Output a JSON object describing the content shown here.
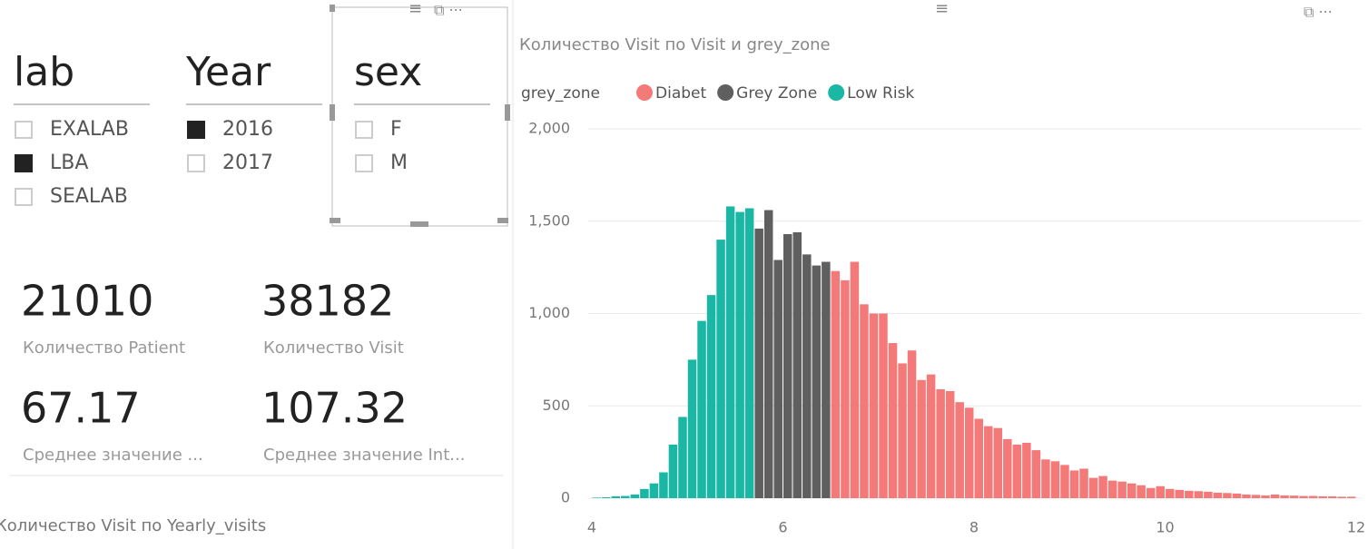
{
  "slicers": [
    {
      "title": "lab",
      "items": [
        {
          "label": "EXALAB",
          "selected": false
        },
        {
          "label": "LBA",
          "selected": true
        },
        {
          "label": "SEALAB",
          "selected": false
        }
      ]
    },
    {
      "title": "Year",
      "items": [
        {
          "label": "2016",
          "selected": true
        },
        {
          "label": "2017",
          "selected": false
        }
      ]
    },
    {
      "title": "sex",
      "items": [
        {
          "label": "F",
          "selected": false
        },
        {
          "label": "M",
          "selected": false
        }
      ]
    }
  ],
  "cards": [
    {
      "value": "21010",
      "label": "Количество Patient"
    },
    {
      "value": "38182",
      "label": "Количество Visit"
    },
    {
      "value": "67.17",
      "label": "Среднее значение ..."
    },
    {
      "value": "107.32",
      "label": "Среднее значение Int..."
    }
  ],
  "bottom_visual_title": "Количество Visit по Yearly_visits",
  "chart_data": {
    "type": "bar",
    "title": "Количество Visit по Visit и grey_zone",
    "legend_title": "grey_zone",
    "series": [
      {
        "name": "Diabet",
        "color": "#f47a7a",
        "x": [
          6.5,
          6.6,
          6.7,
          6.8,
          6.9,
          7.0,
          7.1,
          7.2,
          7.3,
          7.4,
          7.5,
          7.6,
          7.7,
          7.8,
          7.9,
          8.0,
          8.1,
          8.2,
          8.3,
          8.4,
          8.5,
          8.6,
          8.7,
          8.8,
          8.9,
          9.0,
          9.1,
          9.2,
          9.3,
          9.4,
          9.5,
          9.6,
          9.7,
          9.8,
          9.9,
          10.0,
          10.1,
          10.2,
          10.3,
          10.4,
          10.5,
          10.6,
          10.7,
          10.8,
          10.9,
          11.0,
          11.1,
          11.2,
          11.3,
          11.4,
          11.5,
          11.6,
          11.7,
          11.8,
          11.9
        ],
        "values": [
          1230,
          1180,
          1280,
          1050,
          1000,
          1000,
          840,
          730,
          800,
          640,
          670,
          590,
          580,
          520,
          490,
          430,
          390,
          380,
          320,
          290,
          300,
          260,
          210,
          200,
          180,
          150,
          160,
          110,
          120,
          95,
          90,
          80,
          70,
          55,
          65,
          50,
          45,
          40,
          38,
          35,
          30,
          28,
          25,
          20,
          18,
          15,
          20,
          15,
          14,
          12,
          12,
          10,
          10,
          8,
          8
        ]
      },
      {
        "name": "Grey Zone",
        "color": "#5f5f5f",
        "x": [
          5.7,
          5.8,
          5.9,
          6.0,
          6.1,
          6.2,
          6.3,
          6.4
        ],
        "values": [
          1460,
          1560,
          1290,
          1430,
          1440,
          1320,
          1260,
          1280
        ]
      },
      {
        "name": "Low Risk",
        "color": "#1bb7a5",
        "x": [
          4.0,
          4.1,
          4.2,
          4.3,
          4.4,
          4.5,
          4.6,
          4.7,
          4.8,
          4.9,
          5.0,
          5.1,
          5.2,
          5.3,
          5.4,
          5.5,
          5.6
        ],
        "values": [
          3,
          5,
          10,
          12,
          20,
          50,
          80,
          140,
          290,
          440,
          750,
          960,
          1100,
          1400,
          1580,
          1550,
          1570
        ]
      }
    ],
    "xlim": [
      4,
      12
    ],
    "xticks": [
      4,
      6,
      8,
      10,
      12
    ],
    "ylim": [
      0,
      2000
    ],
    "yticks": [
      0,
      500,
      {
        "value": 1000,
        "label": "1,000"
      },
      {
        "value": 1500,
        "label": "1,500"
      },
      {
        "value": 2000,
        "label": "2,000"
      }
    ],
    "grid": true
  }
}
